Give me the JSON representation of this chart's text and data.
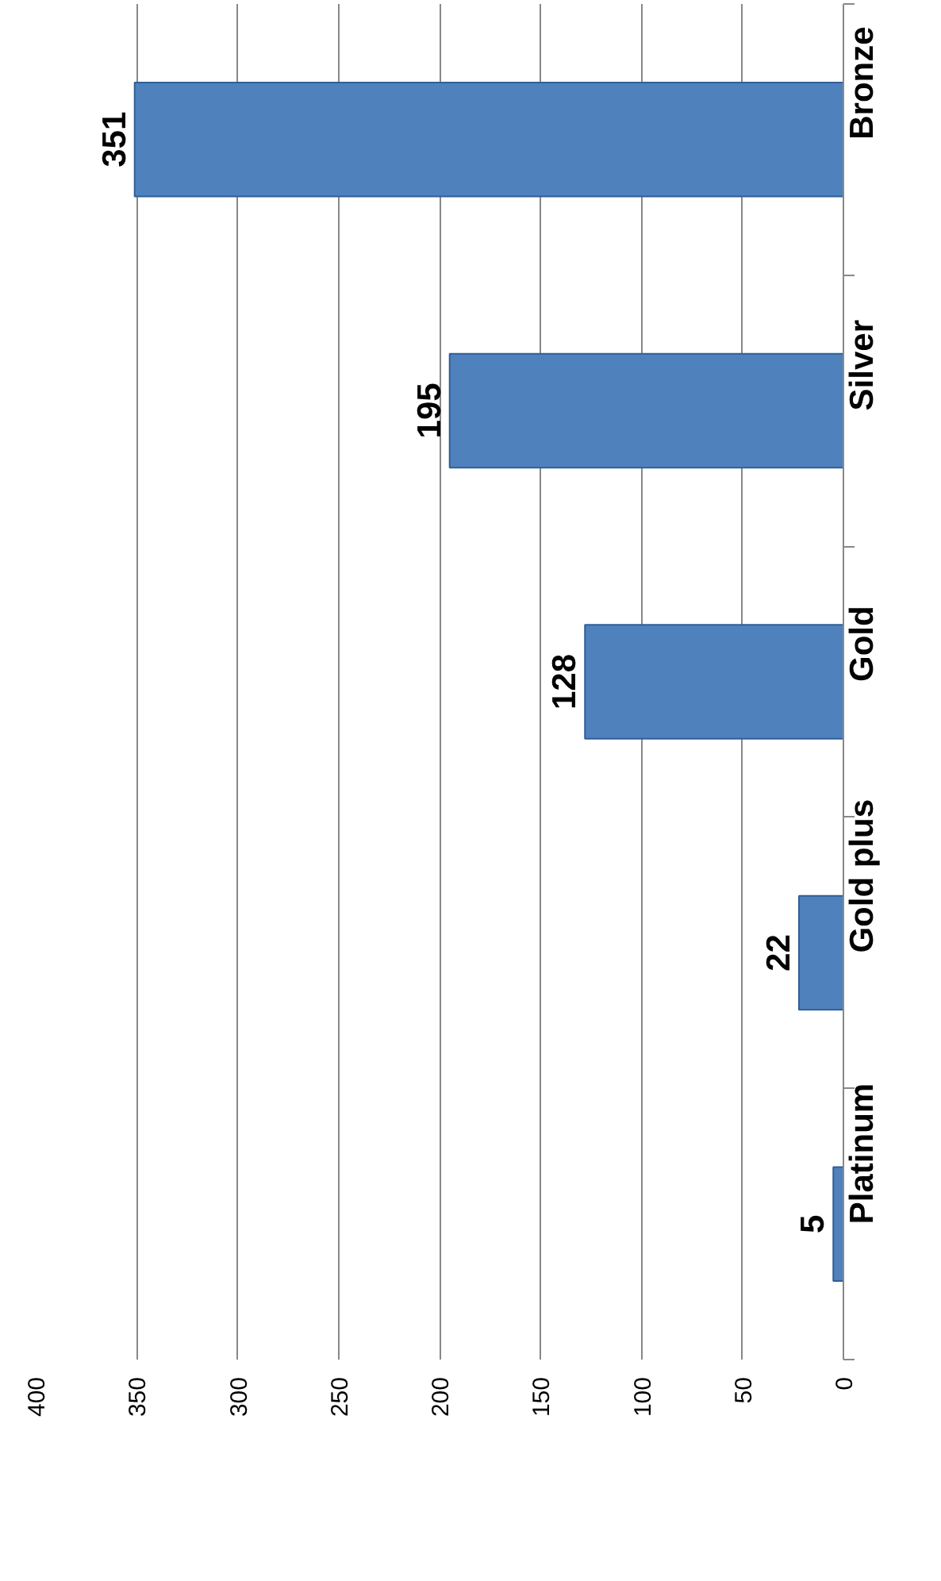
{
  "chart_data": {
    "type": "bar",
    "orientation": "horizontal",
    "categories": [
      "Bronze",
      "Silver",
      "Gold",
      "Gold plus",
      "Platinum"
    ],
    "values": [
      351,
      195,
      128,
      22,
      5
    ],
    "color": "#4f81bd",
    "xlim": [
      400,
      0
    ],
    "xticks": [
      400,
      350,
      300,
      250,
      200,
      150,
      100,
      50,
      0
    ],
    "grid": "x",
    "data_labels": true
  }
}
